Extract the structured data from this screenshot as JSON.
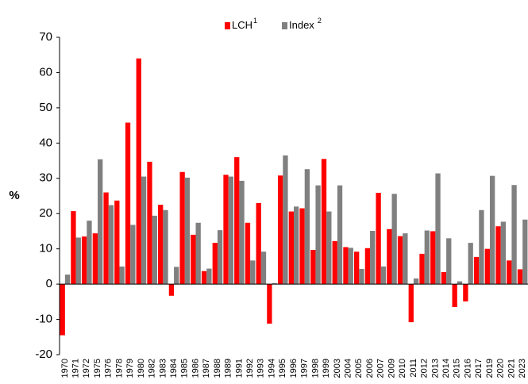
{
  "chart_data": {
    "type": "bar",
    "ylabel": "%",
    "categories": [
      "1970",
      "1971",
      "1972",
      "1975",
      "1976",
      "1978",
      "1979",
      "1980",
      "1982",
      "1983",
      "1984",
      "1985",
      "1986",
      "1987",
      "1988",
      "1989",
      "1991",
      "1992",
      "1993",
      "1994",
      "1995",
      "1996",
      "1997",
      "1998",
      "1999",
      "2003",
      "2004",
      "2005",
      "2006",
      "2007",
      "2009",
      "2010",
      "2011",
      "2012",
      "2013",
      "2014",
      "2015",
      "2016",
      "2017",
      "2019",
      "2020",
      "2021",
      "2023"
    ],
    "series": [
      {
        "name": "LCH",
        "superscript": "1",
        "color": "#ff0000",
        "values": [
          -14.5,
          20.7,
          13.5,
          14.4,
          26,
          23.7,
          45.8,
          64,
          34.7,
          22.5,
          -3.3,
          31.8,
          14,
          3.7,
          11.7,
          31,
          36,
          17.4,
          23,
          -11.2,
          30.8,
          20.6,
          21.5,
          9.7,
          35.5,
          12.2,
          10.5,
          9.2,
          10.2,
          25.9,
          15.6,
          13.6,
          -10.8,
          8.6,
          15,
          3.4,
          -6.5,
          -4.9,
          7.7,
          10,
          16.4,
          6.7,
          4.2
        ]
      },
      {
        "name": "Index",
        "superscript": "2",
        "color": "#808080",
        "values": [
          2.7,
          13.2,
          18,
          35.4,
          22.4,
          5,
          16.8,
          30.5,
          19.4,
          21,
          4.9,
          30.2,
          17.4,
          4.4,
          15.3,
          30.5,
          29.3,
          6.7,
          9.2,
          0.3,
          36.5,
          22,
          32.6,
          28,
          20.6,
          28,
          10.3,
          4.3,
          15.1,
          5,
          25.6,
          14.4,
          1.6,
          15.2,
          31.4,
          13,
          0.8,
          11.7,
          21,
          30.7,
          17.7,
          28.1,
          18.3
        ]
      }
    ],
    "ylim": [
      -20,
      70
    ],
    "yticks": [
      -20,
      -10,
      0,
      10,
      20,
      30,
      40,
      50,
      60,
      70
    ],
    "grid": false,
    "legend": "top"
  }
}
